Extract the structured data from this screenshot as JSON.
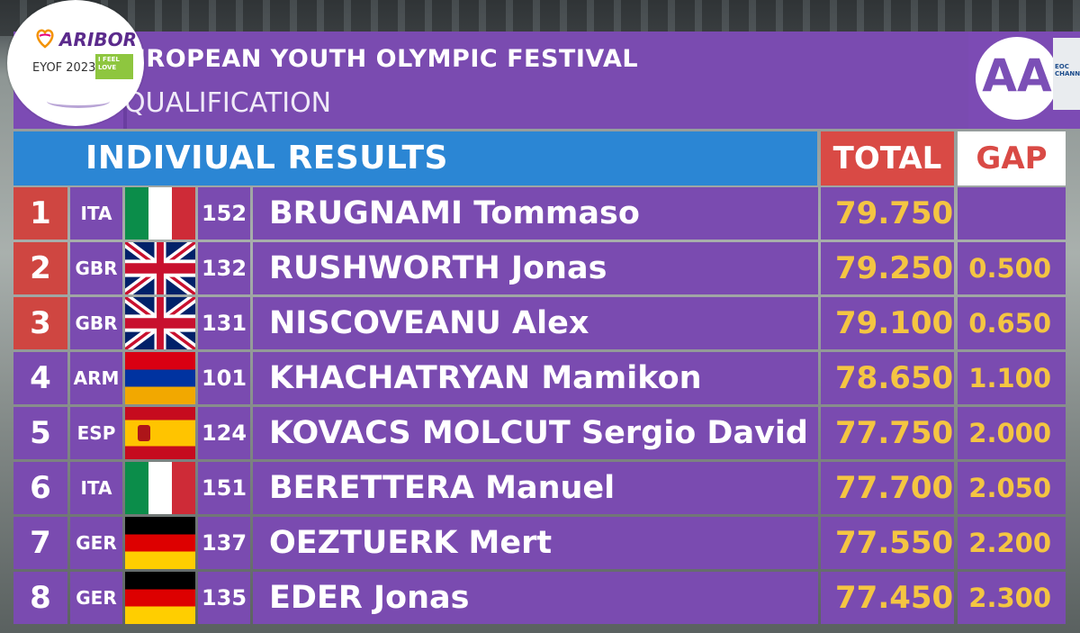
{
  "header": {
    "title": "UROPEAN YOUTH OLYMPIC FESTIVAL",
    "subtitle": "QUALIFICATION",
    "logo_brand": "ARIBOR",
    "logo_year": "EYOF 2023",
    "logo_badge": "I FEEL LOVE",
    "badge": "AA",
    "channel": "EOC CHANNEL"
  },
  "results": {
    "title": "INDIVIUAL RESULTS",
    "total_label": "TOTAL",
    "gap_label": "GAP",
    "rows": [
      {
        "rank": "1",
        "code": "ITA",
        "flag": "italy-flag-icon",
        "bib": "152",
        "name": "BRUGNAMI Tommaso",
        "total": "79.750",
        "gap": "",
        "rank_color": "#cf4641"
      },
      {
        "rank": "2",
        "code": "GBR",
        "flag": "uk-flag-icon",
        "bib": "132",
        "name": "RUSHWORTH Jonas",
        "total": "79.250",
        "gap": "0.500",
        "rank_color": "#cf4641"
      },
      {
        "rank": "3",
        "code": "GBR",
        "flag": "uk-flag-icon",
        "bib": "131",
        "name": "NISCOVEANU Alex",
        "total": "79.100",
        "gap": "0.650",
        "rank_color": "#cf4641"
      },
      {
        "rank": "4",
        "code": "ARM",
        "flag": "armenia-flag-icon",
        "bib": "101",
        "name": "KHACHATRYAN Mamikon",
        "total": "78.650",
        "gap": "1.100",
        "rank_color": "#7a4bb0"
      },
      {
        "rank": "5",
        "code": "ESP",
        "flag": "spain-flag-icon",
        "bib": "124",
        "name": "KOVACS MOLCUT Sergio David",
        "total": "77.750",
        "gap": "2.000",
        "rank_color": "#7a4bb0"
      },
      {
        "rank": "6",
        "code": "ITA",
        "flag": "italy-flag-icon",
        "bib": "151",
        "name": "BERETTERA Manuel",
        "total": "77.700",
        "gap": "2.050",
        "rank_color": "#7a4bb0"
      },
      {
        "rank": "7",
        "code": "GER",
        "flag": "germany-flag-icon",
        "bib": "137",
        "name": "OEZTUERK Mert",
        "total": "77.550",
        "gap": "2.200",
        "rank_color": "#7a4bb0"
      },
      {
        "rank": "8",
        "code": "GER",
        "flag": "germany-flag-icon",
        "bib": "135",
        "name": "EDER Jonas",
        "total": "77.450",
        "gap": "2.300",
        "rank_color": "#7a4bb0"
      }
    ]
  },
  "colors": {
    "panel_purple": "#7a4bb0",
    "header_blue": "#2b86d4",
    "accent_red": "#cf4641",
    "score_yellow": "#f4c542"
  }
}
